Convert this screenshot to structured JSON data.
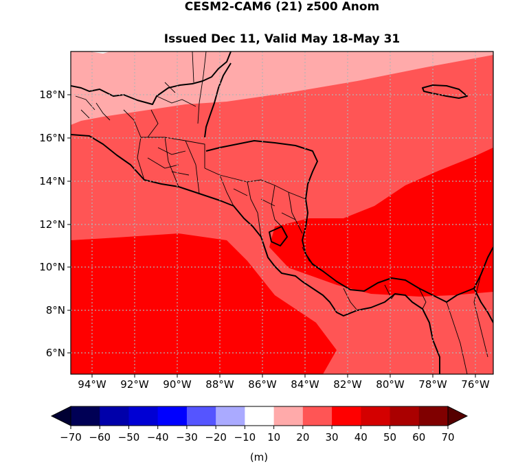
{
  "title": {
    "line1": "CESM2-CAM6 (21) z500 Anom",
    "line2": "Issued Dec 11, Valid May 18-May 31"
  },
  "map": {
    "lon_ticks": [
      "94°W",
      "92°W",
      "90°W",
      "88°W",
      "86°W",
      "84°W",
      "82°W",
      "80°W",
      "78°W",
      "76°W"
    ],
    "lat_ticks": [
      "18°N",
      "16°N",
      "14°N",
      "12°N",
      "10°N",
      "8°N",
      "6°N"
    ],
    "extent": {
      "lon_min": -95.0,
      "lon_max": -75.2,
      "lat_min": 5.0,
      "lat_max": 20.0
    },
    "grid": true,
    "fill_colors": {
      "10-20": "#ffaaaa",
      "20-30": "#ff5555",
      "30-40": "#ff0000"
    }
  },
  "colorbar": {
    "tick_labels": [
      "−70",
      "−60",
      "−50",
      "−40",
      "−30",
      "−20",
      "−10",
      "10",
      "20",
      "30",
      "40",
      "50",
      "60",
      "70"
    ],
    "unit_label": "(m)",
    "colors": [
      "#000055",
      "#0000aa",
      "#0000d4",
      "#0000ff",
      "#5555ff",
      "#aaaaff",
      "#ffffff",
      "#ffaaaa",
      "#ff5555",
      "#ff0000",
      "#d40000",
      "#aa0000",
      "#800000"
    ],
    "extend_low": "#000033",
    "extend_high": "#550000"
  }
}
